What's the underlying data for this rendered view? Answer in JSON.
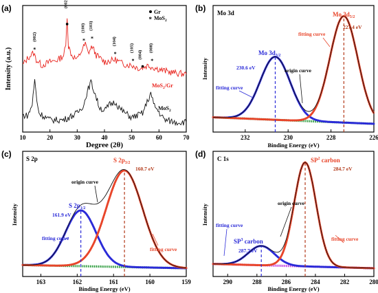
{
  "chart_data": [
    {
      "panel": "(a)",
      "type": "line",
      "title": "",
      "xlabel": "Degree (2θ)",
      "ylabel": "Intensity (a.u.)",
      "xlim": [
        10,
        70
      ],
      "x_ticks": [
        "10",
        "20",
        "30",
        "40",
        "50",
        "60",
        "70"
      ],
      "y_ticks_shown": false,
      "legend": [
        "Gr",
        "MoS2"
      ],
      "legend_placement": "top-right",
      "peak_labels": [
        "(002)",
        "(002)",
        "(100)",
        "(103)",
        "(104)",
        "(105)",
        "(004)",
        "(008)"
      ],
      "series": [
        {
          "name": "MoS2/Gr",
          "color": "#e8201a",
          "points": [
            [
              10,
              0.55
            ],
            [
              12,
              0.62
            ],
            [
              14,
              0.66
            ],
            [
              15,
              0.6
            ],
            [
              17,
              0.55
            ],
            [
              20,
              0.58
            ],
            [
              23,
              0.6
            ],
            [
              25,
              0.64
            ],
            [
              25.8,
              0.72
            ],
            [
              26.3,
              1.0
            ],
            [
              26.8,
              0.72
            ],
            [
              28,
              0.64
            ],
            [
              30,
              0.6
            ],
            [
              32,
              0.7
            ],
            [
              33,
              0.74
            ],
            [
              34,
              0.66
            ],
            [
              35.5,
              0.72
            ],
            [
              37,
              0.64
            ],
            [
              40,
              0.58
            ],
            [
              44,
              0.6
            ],
            [
              47,
              0.56
            ],
            [
              50,
              0.55
            ],
            [
              53,
              0.52
            ],
            [
              56,
              0.55
            ],
            [
              58,
              0.53
            ],
            [
              62,
              0.5
            ],
            [
              66,
              0.48
            ],
            [
              70,
              0.47
            ]
          ]
        },
        {
          "name": "MoS2",
          "color": "#111111",
          "points": [
            [
              10,
              0.1
            ],
            [
              12,
              0.1
            ],
            [
              13.5,
              0.2
            ],
            [
              14.4,
              0.42
            ],
            [
              15.2,
              0.24
            ],
            [
              16,
              0.12
            ],
            [
              20,
              0.06
            ],
            [
              25,
              0.06
            ],
            [
              30,
              0.12
            ],
            [
              32.5,
              0.2
            ],
            [
              33.5,
              0.3
            ],
            [
              35,
              0.4
            ],
            [
              36.5,
              0.3
            ],
            [
              38,
              0.18
            ],
            [
              40,
              0.14
            ],
            [
              42,
              0.2
            ],
            [
              44,
              0.22
            ],
            [
              46,
              0.15
            ],
            [
              50,
              0.08
            ],
            [
              54,
              0.12
            ],
            [
              56,
              0.24
            ],
            [
              57,
              0.3
            ],
            [
              58,
              0.2
            ],
            [
              62,
              0.06
            ],
            [
              66,
              0.04
            ],
            [
              70,
              0.04
            ]
          ]
        }
      ]
    },
    {
      "panel": "(b)",
      "label": "Mo 3d",
      "type": "line",
      "title": "",
      "xlabel": "Binding Energy (eV)",
      "ylabel": "Intensity",
      "xlim": [
        233.5,
        226
      ],
      "x_reversed": true,
      "x_ticks": [
        "232",
        "230",
        "228",
        "226"
      ],
      "peaks": [
        {
          "name": "Mo 3d3/2",
          "position_eV": 230.6,
          "label": "230.6 eV",
          "color": "#2b2bd8",
          "height": 0.58,
          "sigma": 0.7
        },
        {
          "name": "Mo 3d5/2",
          "position_eV": 227.4,
          "label": "227.4 eV",
          "color": "#e8452a",
          "height": 0.98,
          "sigma": 0.65
        }
      ],
      "annotations": [
        "fitting curve",
        "origin curve",
        "fitting curve"
      ]
    },
    {
      "panel": "(c)",
      "label": "S 2p",
      "type": "line",
      "title": "",
      "xlabel": "Binding Energy (eV)",
      "ylabel": "Intensity",
      "xlim": [
        163.5,
        159
      ],
      "x_reversed": true,
      "x_ticks": [
        "163",
        "162",
        "161",
        "160",
        "159"
      ],
      "peaks": [
        {
          "name": "S 2p1/2",
          "position_eV": 161.9,
          "label": "161.9 eV",
          "color": "#2b2bd8",
          "height": 0.52,
          "sigma": 0.42
        },
        {
          "name": "S 2p3/2",
          "position_eV": 160.7,
          "label": "160.7 eV",
          "color": "#e8452a",
          "height": 0.9,
          "sigma": 0.5
        }
      ],
      "annotations": [
        "fitting curve",
        "origin curve",
        "fitting curve"
      ]
    },
    {
      "panel": "(d)",
      "label": "C 1s",
      "type": "line",
      "title": "",
      "xlabel": "Binding Energy (eV)",
      "ylabel": "Intensity",
      "xlim": [
        291,
        280
      ],
      "x_reversed": true,
      "x_ticks": [
        "290",
        "288",
        "286",
        "284",
        "282",
        "280"
      ],
      "peaks": [
        {
          "name": "SP3 carbon",
          "position_eV": 287.7,
          "label": "287.7 eV",
          "color": "#2b2bd8",
          "height": 0.18,
          "sigma": 0.9
        },
        {
          "name": "SP2 carbon",
          "position_eV": 284.7,
          "label": "284.7 eV",
          "color": "#e8452a",
          "height": 0.97,
          "sigma": 0.75
        }
      ],
      "annotations": [
        "fitting curve",
        "origin curve",
        "fitting curve"
      ]
    }
  ],
  "panels": {
    "a": {
      "tag": "(a)",
      "xlabel": "Degree (2θ)",
      "ylabel": "Intensity (a.u.)",
      "legend_gr": "Gr",
      "legend_mos2": "MoS",
      "legend_mos2_sub": "2",
      "label_mos2gr": "MoS",
      "label_mos2gr_sub": "2",
      "label_mos2gr_tail": "/Gr",
      "label_mos2": "MoS",
      "label_mos2_sub": "2"
    },
    "b": {
      "tag": "(b)",
      "element": "Mo 3d",
      "xlabel": "Binding Energy (eV)",
      "ylabel": "Intensity",
      "peak1": "Mo 3d",
      "peak1_sub": "3/2",
      "peak1_ev": "230.6 eV",
      "peak2": "Mo 3d",
      "peak2_sub": "5/2",
      "peak2_ev": "227.4 eV",
      "fit_left": "fitting curve",
      "fit_right": "fitting curve",
      "origin": "origin curve"
    },
    "c": {
      "tag": "(c)",
      "element": "S 2p",
      "xlabel": "Binding Energy (eV)",
      "ylabel": "Intensity",
      "peak1": "S 2p",
      "peak1_sub": "1/2",
      "peak1_ev": "161.9 eV",
      "peak2": "S 2p",
      "peak2_sub": "3/2",
      "peak2_ev": "160.7 eV",
      "fit_left": "fitting curve",
      "fit_right": "fitting curve",
      "origin": "origin curve"
    },
    "d": {
      "tag": "(d)",
      "element": "C 1s",
      "xlabel": "Binding Energy (eV)",
      "ylabel": "Intensity",
      "peak1": "SP",
      "peak1_sup": "3",
      "peak1_tail": " carbon",
      "peak1_ev": "287.7 eV",
      "peak2": "SP",
      "peak2_sup": "2",
      "peak2_tail": " carbon",
      "peak2_ev": "284.7 eV",
      "fit_left": "fitting curve",
      "fit_right": "fitting curve",
      "origin": "origin curve"
    }
  },
  "colors": {
    "red": "#e8201a",
    "blue": "#2b2bd8",
    "orange": "#e8452a",
    "green": "#2a9a3a",
    "magenta": "#c040e0",
    "black": "#111111"
  }
}
